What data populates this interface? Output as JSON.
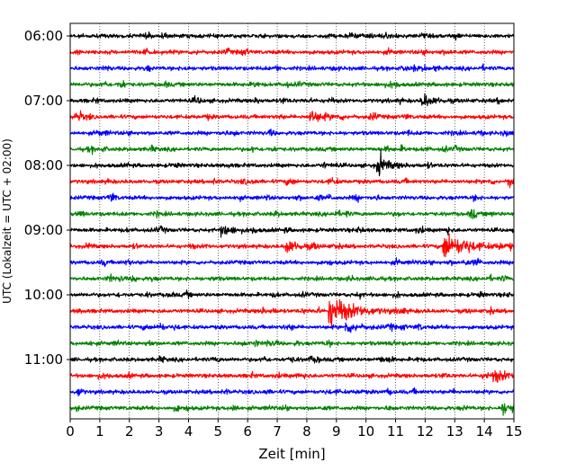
{
  "chart_data": {
    "type": "line",
    "title": "",
    "xlabel": "Zeit  [min]",
    "ylabel": "UTC (Lokalzeit = UTC + 02:00)",
    "xlim": [
      0,
      15
    ],
    "x_ticks": [
      "0",
      "1",
      "2",
      "3",
      "4",
      "5",
      "6",
      "7",
      "8",
      "9",
      "10",
      "11",
      "12",
      "13",
      "14",
      "15"
    ],
    "y_ticks": [
      "06:00",
      "07:00",
      "08:00",
      "09:00",
      "10:00",
      "11:00"
    ],
    "grid": "vertical-dotted",
    "trace_interval_minutes": 15,
    "color_cycle": [
      "#000000",
      "#ff0000",
      "#0000ff",
      "#008000"
    ],
    "traces": [
      {
        "start": "06:00",
        "color": "#000000",
        "events": []
      },
      {
        "start": "06:15",
        "color": "#ff0000",
        "events": []
      },
      {
        "start": "06:30",
        "color": "#0000ff",
        "events": []
      },
      {
        "start": "06:45",
        "color": "#008000",
        "events": []
      },
      {
        "start": "07:00",
        "color": "#000000",
        "events": [
          {
            "t": 11.9,
            "amp": 0.35
          }
        ]
      },
      {
        "start": "07:15",
        "color": "#ff0000",
        "events": [
          {
            "t": 8.1,
            "amp": 0.4
          }
        ]
      },
      {
        "start": "07:30",
        "color": "#0000ff",
        "events": []
      },
      {
        "start": "07:45",
        "color": "#008000",
        "events": []
      },
      {
        "start": "08:00",
        "color": "#000000",
        "events": [
          {
            "t": 10.4,
            "amp": 0.4
          }
        ]
      },
      {
        "start": "08:15",
        "color": "#ff0000",
        "events": [
          {
            "t": 14.8,
            "amp": 0.4
          }
        ]
      },
      {
        "start": "08:30",
        "color": "#0000ff",
        "events": []
      },
      {
        "start": "08:45",
        "color": "#008000",
        "events": []
      },
      {
        "start": "09:00",
        "color": "#000000",
        "events": [
          {
            "t": 5.1,
            "amp": 0.35
          }
        ]
      },
      {
        "start": "09:15",
        "color": "#ff0000",
        "events": [
          {
            "t": 7.3,
            "amp": 0.4
          },
          {
            "t": 12.6,
            "amp": 0.9
          }
        ]
      },
      {
        "start": "09:30",
        "color": "#0000ff",
        "events": []
      },
      {
        "start": "09:45",
        "color": "#008000",
        "events": []
      },
      {
        "start": "10:00",
        "color": "#000000",
        "events": []
      },
      {
        "start": "10:15",
        "color": "#ff0000",
        "events": [
          {
            "t": 8.75,
            "amp": 1.0
          }
        ]
      },
      {
        "start": "10:30",
        "color": "#0000ff",
        "events": [
          {
            "t": 9.3,
            "amp": 0.35
          }
        ]
      },
      {
        "start": "10:45",
        "color": "#008000",
        "events": []
      },
      {
        "start": "11:00",
        "color": "#000000",
        "events": []
      },
      {
        "start": "11:15",
        "color": "#ff0000",
        "events": [
          {
            "t": 14.3,
            "amp": 0.4
          }
        ]
      },
      {
        "start": "11:30",
        "color": "#0000ff",
        "events": []
      },
      {
        "start": "11:45",
        "color": "#008000",
        "events": [
          {
            "t": 14.6,
            "amp": 0.4
          }
        ]
      }
    ]
  }
}
